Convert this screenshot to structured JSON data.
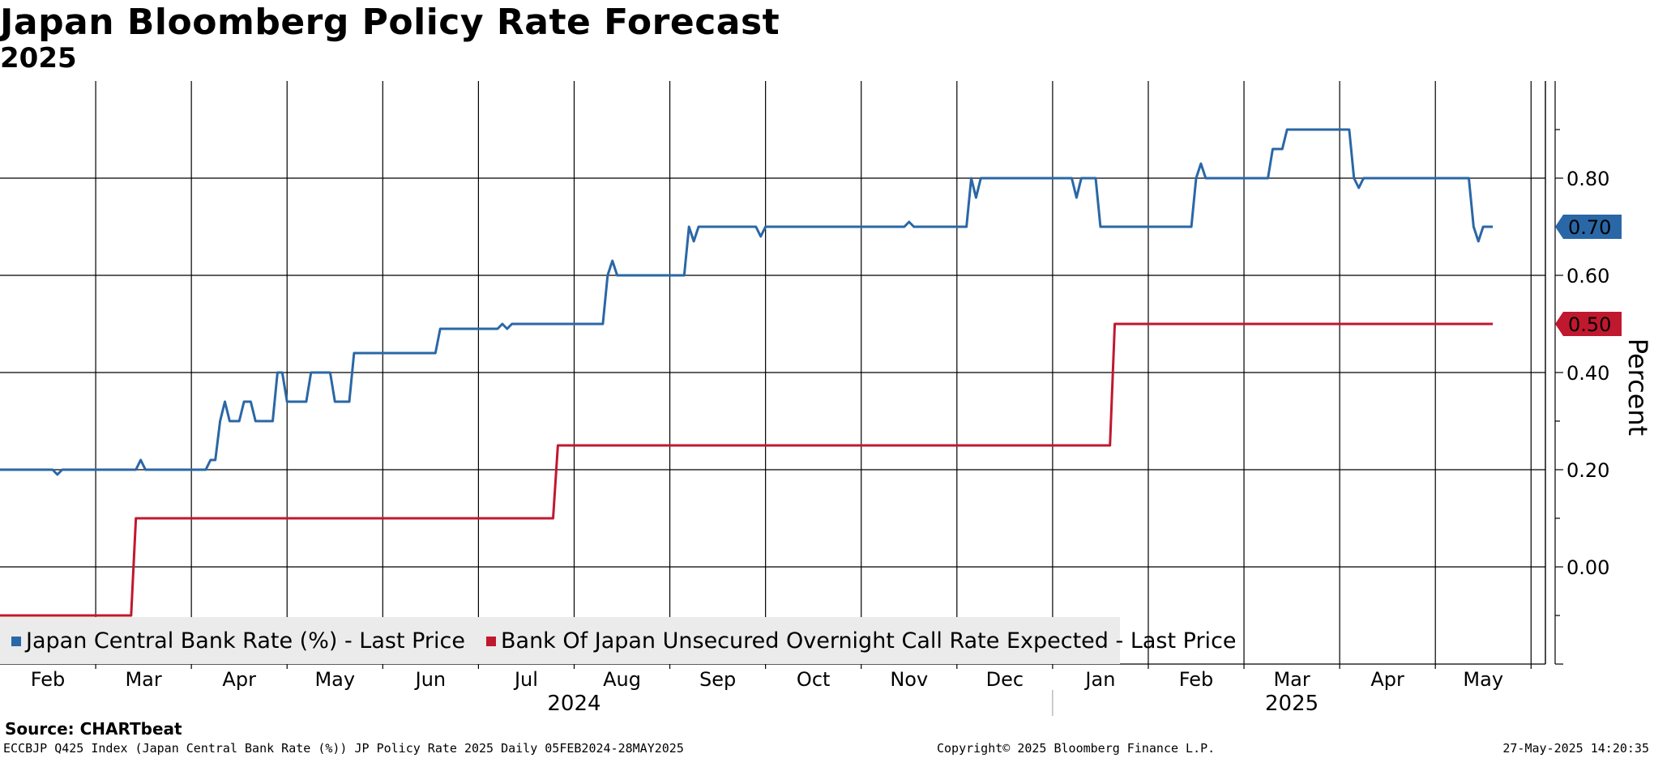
{
  "chart_data": {
    "type": "line",
    "title": "Japan Bloomberg Policy Rate Forecast",
    "subtitle": "2025",
    "ylabel": "Percent",
    "ylim": [
      -0.2,
      1.0
    ],
    "yticks": [
      "0.80",
      "0.60",
      "0.40",
      "0.20",
      "0.00"
    ],
    "ytick_values": [
      0.8,
      0.6,
      0.4,
      0.2,
      0.0
    ],
    "months": [
      "Feb",
      "Mar",
      "Apr",
      "May",
      "Jun",
      "Jul",
      "Aug",
      "Sep",
      "Oct",
      "Nov",
      "Dec",
      "Jan",
      "Feb",
      "Mar",
      "Apr",
      "May"
    ],
    "month_t": [
      0.5,
      1.5,
      2.5,
      3.5,
      4.5,
      5.5,
      6.5,
      7.5,
      8.5,
      9.5,
      10.5,
      11.5,
      12.5,
      13.5,
      14.5,
      15.5
    ],
    "years": [
      {
        "label": "2024",
        "t": 6.0
      },
      {
        "label": "2025",
        "t": 13.5
      }
    ],
    "x_range_months": [
      0,
      16.15
    ],
    "series": [
      {
        "name": "Japan Central Bank Rate (%) - Last Price",
        "color": "#2a67a6",
        "last_label": "0.70",
        "points": [
          [
            0.0,
            0.2
          ],
          [
            0.55,
            0.2
          ],
          [
            0.6,
            0.19
          ],
          [
            0.65,
            0.2
          ],
          [
            1.42,
            0.2
          ],
          [
            1.47,
            0.22
          ],
          [
            1.52,
            0.2
          ],
          [
            2.15,
            0.2
          ],
          [
            2.2,
            0.22
          ],
          [
            2.25,
            0.22
          ],
          [
            2.3,
            0.3
          ],
          [
            2.35,
            0.34
          ],
          [
            2.4,
            0.3
          ],
          [
            2.5,
            0.3
          ],
          [
            2.55,
            0.34
          ],
          [
            2.62,
            0.34
          ],
          [
            2.67,
            0.3
          ],
          [
            2.85,
            0.3
          ],
          [
            2.9,
            0.4
          ],
          [
            2.95,
            0.4
          ],
          [
            3.0,
            0.34
          ],
          [
            3.2,
            0.34
          ],
          [
            3.25,
            0.4
          ],
          [
            3.45,
            0.4
          ],
          [
            3.5,
            0.34
          ],
          [
            3.65,
            0.34
          ],
          [
            3.7,
            0.44
          ],
          [
            4.55,
            0.44
          ],
          [
            4.6,
            0.49
          ],
          [
            5.2,
            0.49
          ],
          [
            5.25,
            0.5
          ],
          [
            5.3,
            0.49
          ],
          [
            5.35,
            0.5
          ],
          [
            6.3,
            0.5
          ],
          [
            6.35,
            0.6
          ],
          [
            6.4,
            0.63
          ],
          [
            6.45,
            0.6
          ],
          [
            7.15,
            0.6
          ],
          [
            7.2,
            0.7
          ],
          [
            7.25,
            0.67
          ],
          [
            7.3,
            0.7
          ],
          [
            7.9,
            0.7
          ],
          [
            7.95,
            0.68
          ],
          [
            8.0,
            0.7
          ],
          [
            9.45,
            0.7
          ],
          [
            9.5,
            0.71
          ],
          [
            9.55,
            0.7
          ],
          [
            10.1,
            0.7
          ],
          [
            10.15,
            0.8
          ],
          [
            10.2,
            0.76
          ],
          [
            10.25,
            0.8
          ],
          [
            11.2,
            0.8
          ],
          [
            11.25,
            0.76
          ],
          [
            11.3,
            0.8
          ],
          [
            11.45,
            0.8
          ],
          [
            11.5,
            0.7
          ],
          [
            12.45,
            0.7
          ],
          [
            12.5,
            0.8
          ],
          [
            12.55,
            0.83
          ],
          [
            12.6,
            0.8
          ],
          [
            13.25,
            0.8
          ],
          [
            13.3,
            0.86
          ],
          [
            13.4,
            0.86
          ],
          [
            13.45,
            0.9
          ],
          [
            14.1,
            0.9
          ],
          [
            14.15,
            0.8
          ],
          [
            14.2,
            0.78
          ],
          [
            14.25,
            0.8
          ],
          [
            15.35,
            0.8
          ],
          [
            15.4,
            0.7
          ],
          [
            15.45,
            0.67
          ],
          [
            15.5,
            0.7
          ],
          [
            15.6,
            0.7
          ]
        ]
      },
      {
        "name": "Bank Of Japan Unsecured Overnight Call Rate Expected - Last Price",
        "color": "#c0182e",
        "last_label": "0.50",
        "points": [
          [
            0.0,
            -0.1
          ],
          [
            1.37,
            -0.1
          ],
          [
            1.42,
            0.1
          ],
          [
            5.78,
            0.1
          ],
          [
            5.83,
            0.25
          ],
          [
            11.6,
            0.25
          ],
          [
            11.65,
            0.5
          ],
          [
            15.6,
            0.5
          ]
        ]
      }
    ]
  },
  "footer": {
    "source": "Source: CHARTbeat",
    "left": "ECCBJP Q425 Index (Japan Central Bank Rate (%)) JP Policy Rate 2025  Daily 05FEB2024-28MAY2025",
    "center": "Copyright© 2025 Bloomberg Finance L.P.",
    "right": "27-May-2025 14:20:35"
  }
}
